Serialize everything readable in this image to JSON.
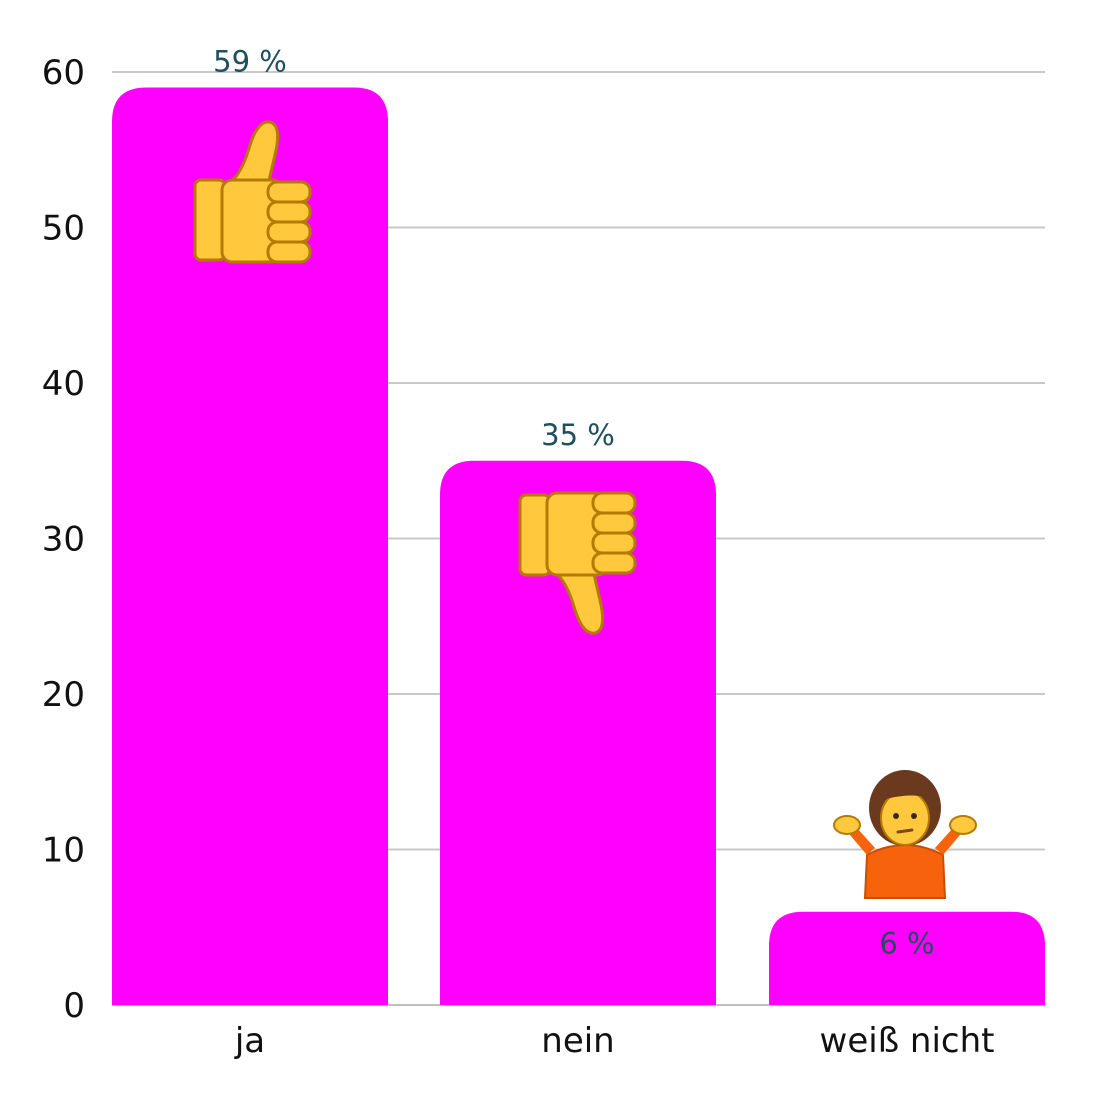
{
  "chart_data": {
    "type": "bar",
    "categories": [
      "ja",
      "nein",
      "weiß nicht"
    ],
    "values": [
      59,
      35,
      6
    ],
    "value_labels": [
      "59 %",
      "35 %",
      "6 %"
    ],
    "y_ticks": [
      "0",
      "10",
      "20",
      "30",
      "40",
      "50",
      "60"
    ],
    "ylim": [
      0,
      60
    ],
    "grid": true,
    "bar_color": "#ff00ff",
    "value_label_color": "#1f4f5e",
    "icons": [
      "thumbs-up-icon",
      "thumbs-down-icon",
      "shrugging-person-icon"
    ],
    "title": "",
    "xlabel": "",
    "ylabel": ""
  }
}
